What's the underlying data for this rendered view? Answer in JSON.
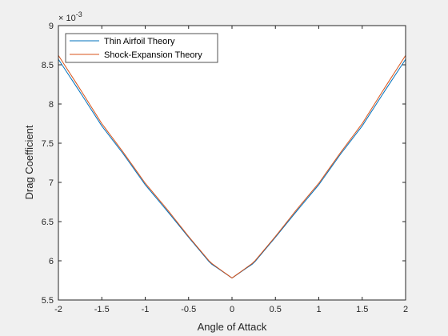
{
  "chart_data": {
    "type": "line",
    "title": "",
    "xlabel": "Angle of Attack",
    "ylabel": "Drag Coefficient",
    "y_exponent_label": "× 10",
    "y_exponent_power": "-3",
    "xlim": [
      -2,
      2
    ],
    "ylim": [
      5.5,
      9
    ],
    "x_ticks": [
      -2,
      -1.5,
      -1,
      -0.5,
      0,
      0.5,
      1,
      1.5,
      2
    ],
    "x_tick_labels": [
      "-2",
      "-1.5",
      "-1",
      "-0.5",
      "0",
      "0.5",
      "1",
      "1.5",
      "2"
    ],
    "y_ticks": [
      5.5,
      6,
      6.5,
      7,
      7.5,
      8,
      8.5,
      9
    ],
    "y_tick_labels": [
      "5.5",
      "6",
      "6.5",
      "7",
      "7.5",
      "8",
      "8.5",
      "9"
    ],
    "grid": false,
    "legend_position": "top-left",
    "x": [
      -2,
      -1.75,
      -1.5,
      -1.25,
      -1,
      -0.75,
      -0.5,
      -0.25,
      0,
      0.25,
      0.5,
      0.75,
      1,
      1.25,
      1.5,
      1.75,
      2
    ],
    "series": [
      {
        "name": "Thin Airfoil Theory",
        "color": "#0072bd",
        "values": [
          8.57,
          8.15,
          7.72,
          7.36,
          6.97,
          6.64,
          6.3,
          5.97,
          5.78,
          5.97,
          6.3,
          6.64,
          6.97,
          7.36,
          7.72,
          8.15,
          8.57
        ]
      },
      {
        "name": "Shock-Expansion Theory",
        "color": "#d95319",
        "values": [
          8.62,
          8.19,
          7.75,
          7.38,
          6.99,
          6.66,
          6.31,
          5.98,
          5.78,
          5.98,
          6.31,
          6.66,
          6.99,
          7.38,
          7.75,
          8.19,
          8.62
        ]
      }
    ]
  }
}
